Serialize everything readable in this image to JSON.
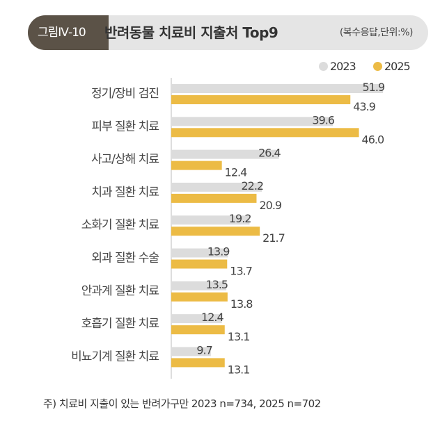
{
  "chart_data": {
    "type": "bar",
    "orientation": "horizontal",
    "figure_label": "그림Ⅳ-10",
    "title": "반려동물 치료비 지출처 Top9",
    "unit_note": "(복수응답,단위:%)",
    "categories": [
      "정기/장비 검진",
      "피부 질환 치료",
      "사고/상해 치료",
      "치과 질환 치료",
      "소화기 질환 치료",
      "외과 질환 수술",
      "안과계 질환 치료",
      "호흡기 질환 치료",
      "비뇨기계 질환 치료"
    ],
    "series": [
      {
        "name": "2023",
        "color": "#dcdcdc",
        "values": [
          51.9,
          39.6,
          26.4,
          22.2,
          19.2,
          13.9,
          13.5,
          12.4,
          9.7
        ]
      },
      {
        "name": "2025",
        "color": "#ecbb45",
        "values": [
          43.9,
          46.0,
          12.4,
          20.9,
          21.7,
          13.7,
          13.8,
          13.1,
          13.1
        ]
      }
    ],
    "xlim": [
      0,
      60
    ],
    "legend": "top-right",
    "grid": false,
    "footnote": "주)  치료비 지출이 있는 반려가구만 2023 n=734, 2025 n=702"
  }
}
